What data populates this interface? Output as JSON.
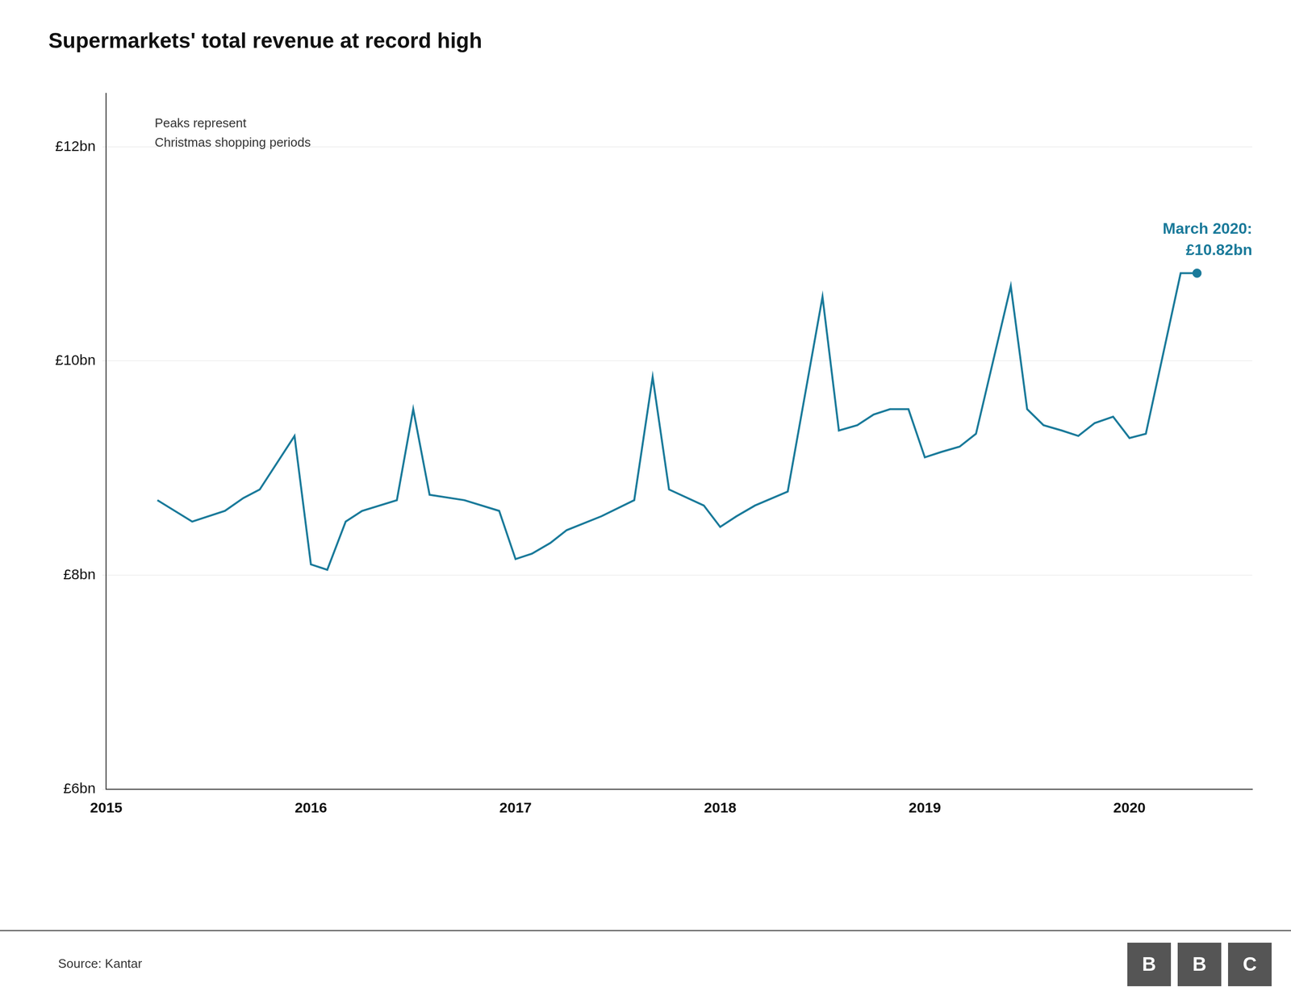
{
  "chart_data": {
    "type": "line",
    "title": "Supermarkets' total revenue at record high",
    "x": [
      2015.25,
      2015.42,
      2015.58,
      2015.67,
      2015.75,
      2015.92,
      2016.0,
      2016.08,
      2016.17,
      2016.25,
      2016.42,
      2016.5,
      2016.58,
      2016.75,
      2016.92,
      2017.0,
      2017.08,
      2017.17,
      2017.25,
      2017.42,
      2017.58,
      2017.67,
      2017.75,
      2017.92,
      2018.0,
      2018.08,
      2018.17,
      2018.33,
      2018.5,
      2018.58,
      2018.67,
      2018.75,
      2018.83,
      2018.92,
      2019.0,
      2019.08,
      2019.17,
      2019.25,
      2019.42,
      2019.5,
      2019.58,
      2019.67,
      2019.75,
      2019.83,
      2019.92,
      2020.0,
      2020.08,
      2020.25,
      2020.33
    ],
    "series": [
      {
        "color": "#1a7a9a",
        "values": [
          8.7,
          8.5,
          8.6,
          8.72,
          8.8,
          9.3,
          8.1,
          8.05,
          8.5,
          8.6,
          8.7,
          9.55,
          8.75,
          8.7,
          8.6,
          8.15,
          8.2,
          8.3,
          8.42,
          8.55,
          8.7,
          9.85,
          8.8,
          8.65,
          8.45,
          8.55,
          8.65,
          8.78,
          10.6,
          9.35,
          9.4,
          9.5,
          9.55,
          9.55,
          9.1,
          9.15,
          9.2,
          9.32,
          10.7,
          9.55,
          9.4,
          9.35,
          9.3,
          9.42,
          9.48,
          9.28,
          9.32,
          10.82,
          10.82
        ]
      }
    ],
    "highlight": {
      "x": 2020.33,
      "y": 10.82
    },
    "xlim": [
      2015.0,
      2020.6
    ],
    "xticks": [
      2015,
      2016,
      2017,
      2018,
      2019,
      2020
    ],
    "ylim": [
      6,
      12.5
    ],
    "yticks": [
      {
        "value": 6,
        "label": "£6bn"
      },
      {
        "value": 8,
        "label": "£8bn"
      },
      {
        "value": 10,
        "label": "£10bn"
      },
      {
        "value": 12,
        "label": "£12bn"
      }
    ],
    "grid": "y",
    "annotations": [
      "March 2020:",
      "£10.82bn",
      "Peaks represent\nChristmas shopping periods"
    ],
    "source": "Source: Kantar",
    "credit": "BBC"
  }
}
